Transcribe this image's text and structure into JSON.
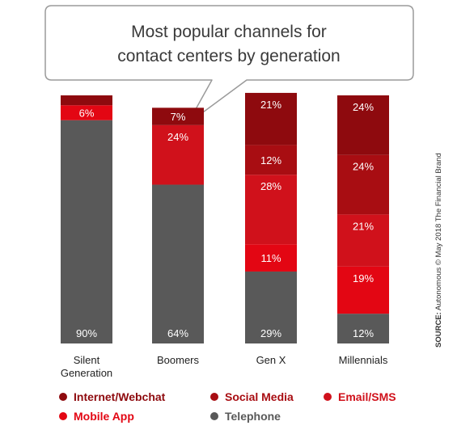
{
  "chart_data": {
    "type": "bar",
    "stacked": true,
    "title": "Most popular channels for contact centers by generation",
    "title_lines": [
      "Most popular channels for",
      "contact centers by generation"
    ],
    "categories": [
      "Silent Generation",
      "Boomers",
      "Gen X",
      "Millennials"
    ],
    "category_lines": [
      [
        "Silent",
        "Generation"
      ],
      [
        "Boomers"
      ],
      [
        "Gen X"
      ],
      [
        "Millennials"
      ]
    ],
    "ylim": [
      0,
      100
    ],
    "grid": false,
    "legend_position": "bottom",
    "series": [
      {
        "name": "Telephone",
        "color": "#595959",
        "values": [
          90,
          64,
          29,
          12
        ],
        "labels": [
          "90%",
          "64%",
          "29%",
          "12%"
        ]
      },
      {
        "name": "Mobile App",
        "color": "#e30613",
        "values": [
          6,
          0,
          11,
          19
        ],
        "labels": [
          "6%",
          "",
          "11%",
          "19%"
        ]
      },
      {
        "name": "Email/SMS",
        "color": "#d0111b",
        "values": [
          0,
          24,
          28,
          21
        ],
        "labels": [
          "",
          "24%",
          "28%",
          "21%"
        ]
      },
      {
        "name": "Social Media",
        "color": "#a80d12",
        "values": [
          0,
          0,
          12,
          24
        ],
        "labels": [
          "",
          "",
          "12%",
          "24%"
        ]
      },
      {
        "name": "Internet/Webchat",
        "color": "#8e0a0e",
        "values": [
          4,
          7,
          21,
          24
        ],
        "labels": [
          "",
          "7%",
          "21%",
          "24%"
        ]
      }
    ],
    "legend_order": [
      "Internet/Webchat",
      "Social Media",
      "Email/SMS",
      "Mobile App",
      "Telephone"
    ],
    "source_bold": "SOURCE:",
    "source_rest": " Autonomous © May 2018 The Financial Brand"
  }
}
